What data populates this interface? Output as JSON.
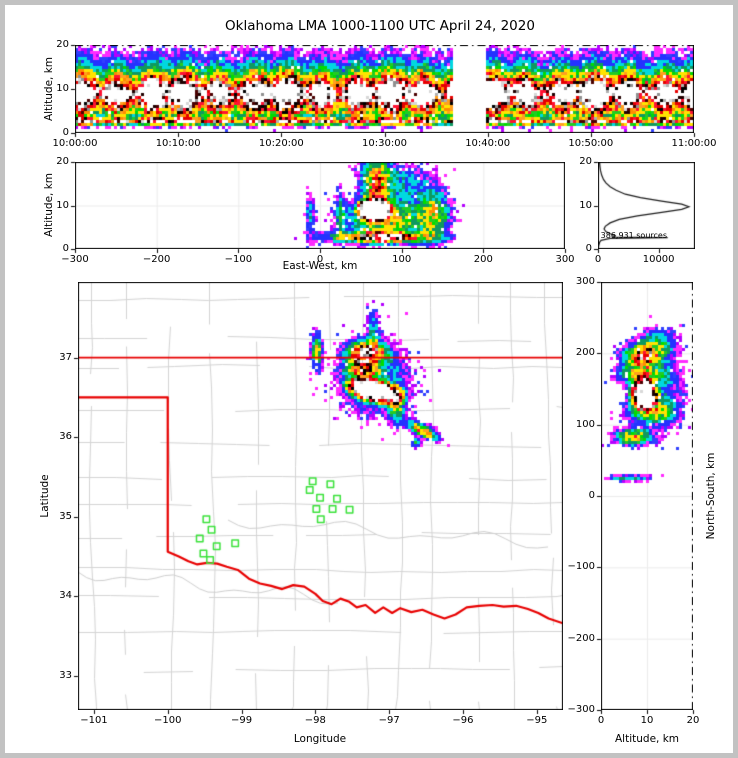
{
  "labels": {
    "title": "Oklahoma LMA 1000-1100 UTC April 24, 2020"
  },
  "colors": {
    "state_border": "#e80000",
    "county_line": "#d4d4d4",
    "river": "#cfcfcf",
    "station": "#3ce23c",
    "grid": "#ececec",
    "frame": "#000000",
    "background": "#ffffff",
    "outer_border": "#c2c2c2"
  },
  "color_scale": {
    "levels": [
      [
        0.955,
        [
          "#ffffff"
        ]
      ],
      [
        0.87,
        [
          "#d8d8d8",
          "#b0b0b0",
          "#909090"
        ]
      ],
      [
        0.77,
        [
          "#000000",
          "#200000",
          "#4a0000"
        ]
      ],
      [
        0.645,
        [
          "#e60000",
          "#ff1232"
        ]
      ],
      [
        0.535,
        [
          "#ff8c00",
          "#ffa020"
        ]
      ],
      [
        0.435,
        [
          "#ffe400"
        ]
      ],
      [
        0.35,
        [
          "#00dc00",
          "#22cc22"
        ]
      ],
      [
        0.275,
        [
          "#0f9960"
        ]
      ],
      [
        0.205,
        [
          "#00d8e0"
        ]
      ],
      [
        0.14,
        [
          "#2432ff"
        ]
      ],
      [
        0.085,
        [
          "#ff2bff",
          "#b400ff",
          "#3040ff",
          "#ff2bff"
        ]
      ]
    ],
    "sparse": {
      "threshold": 0.085,
      "colors": [
        "#ff2bff",
        "#ff2bff",
        "#b400ff",
        "#3040ff"
      ],
      "max_prob": 0.5
    }
  },
  "chart_data": [
    {
      "id": "time_height",
      "type": "heatmap",
      "ylabel": "Altitude, km",
      "x_range": [
        0,
        60
      ],
      "y_range": [
        0,
        20
      ],
      "x_tick_values": [
        0,
        10,
        20,
        30,
        40,
        50,
        60
      ],
      "x_tick_labels": [
        "10:00:00",
        "10:10:00",
        "10:20:00",
        "10:30:00",
        "10:40:00",
        "10:50:00",
        "11:00:00"
      ],
      "y_tick_values": [
        0,
        10,
        20
      ],
      "y_tick_labels": [
        "0",
        "10",
        "20"
      ],
      "gap_x": [
        36.7,
        39.8
      ],
      "components": [
        {
          "cx": 30,
          "cy": 9.2,
          "sx": 900,
          "sy": 1.7,
          "amp": 1.0
        },
        {
          "cx": 30,
          "cy": 7.2,
          "sx": 900,
          "sy": 2.4,
          "amp": 0.5
        },
        {
          "cx": 30,
          "cy": 2.6,
          "sx": 900,
          "sy": 0.55,
          "amp": 0.8
        },
        {
          "cx": 30,
          "cy": 12.2,
          "sx": 900,
          "sy": 1.9,
          "amp": 0.42
        },
        {
          "cx": 30,
          "cy": 15.5,
          "sx": 900,
          "sy": 2.8,
          "amp": 0.2
        },
        {
          "cx": 30,
          "cy": 5.0,
          "sx": 900,
          "sy": 1.6,
          "amp": 0.34
        }
      ]
    },
    {
      "id": "east_west",
      "type": "heatmap",
      "xlabel": "East-West, km",
      "ylabel": "Altitude, km",
      "x_range": [
        -300,
        300
      ],
      "y_range": [
        0,
        20
      ],
      "x_tick_values": [
        -300,
        -200,
        -100,
        0,
        100,
        200,
        300
      ],
      "x_tick_labels": [
        "−300",
        "−200",
        "−100",
        "0",
        "100",
        "200",
        "300"
      ],
      "y_tick_values": [
        0,
        10,
        20
      ],
      "y_tick_labels": [
        "0",
        "10",
        "20"
      ],
      "grid_x": [
        -200,
        -100,
        0,
        100,
        200
      ],
      "grid_y": [
        10
      ],
      "components": [
        {
          "cx": 66,
          "cy": 9.0,
          "sx": 17,
          "sy": 2.1,
          "amp": 1.12,
          "p": 2
        },
        {
          "cx": 69,
          "cy": 13.5,
          "sx": 11,
          "sy": 3.2,
          "amp": 0.5
        },
        {
          "cx": 80,
          "cy": 7.0,
          "sx": 33,
          "sy": 3.2,
          "amp": 0.5
        },
        {
          "cx": 75,
          "cy": 2.7,
          "sx": 40,
          "sy": 0.85,
          "amp": 0.78
        },
        {
          "cx": 140,
          "cy": 8.0,
          "sx": 13,
          "sy": 4.0,
          "amp": 0.42
        },
        {
          "cx": 70,
          "cy": 18.0,
          "sx": 13,
          "sy": 2.3,
          "amp": 0.33
        },
        {
          "cx": 25,
          "cy": 7.0,
          "sx": 3.5,
          "sy": 4.0,
          "amp": 0.26
        },
        {
          "cx": -12,
          "cy": 7.5,
          "sx": 4.5,
          "sy": 3.5,
          "amp": 0.22
        },
        {
          "cx": 105,
          "cy": 15.5,
          "sx": 22,
          "sy": 2.8,
          "amp": 0.22
        }
      ]
    },
    {
      "id": "source_histogram",
      "type": "line",
      "annotation": "386,931 sources",
      "x_range": [
        0,
        16000
      ],
      "y_range": [
        0,
        20
      ],
      "x_tick_values": [
        0,
        10000
      ],
      "x_tick_labels": [
        "0",
        "10000"
      ],
      "y_tick_values": [
        0,
        10,
        20
      ],
      "y_tick_labels": [
        "0",
        "10",
        "20"
      ],
      "points": [
        [
          0,
          50
        ],
        [
          0.8,
          120
        ],
        [
          1.5,
          250
        ],
        [
          2.0,
          500
        ],
        [
          2.45,
          2000
        ],
        [
          2.6,
          11500
        ],
        [
          2.75,
          2500
        ],
        [
          3.1,
          2800
        ],
        [
          3.5,
          2000
        ],
        [
          4.0,
          1300
        ],
        [
          4.6,
          1000
        ],
        [
          5.2,
          1200
        ],
        [
          6.0,
          2000
        ],
        [
          6.8,
          3500
        ],
        [
          7.6,
          6500
        ],
        [
          8.4,
          10500
        ],
        [
          9.1,
          13800
        ],
        [
          9.7,
          15000
        ],
        [
          10.3,
          13800
        ],
        [
          11.0,
          10500
        ],
        [
          11.8,
          7000
        ],
        [
          12.6,
          4500
        ],
        [
          13.5,
          3000
        ],
        [
          14.3,
          2000
        ],
        [
          15.2,
          1300
        ],
        [
          16.0,
          900
        ],
        [
          17.0,
          600
        ],
        [
          18.0,
          420
        ],
        [
          19.0,
          320
        ],
        [
          20.0,
          260
        ]
      ]
    },
    {
      "id": "plan_view",
      "type": "heatmap",
      "xlabel": "Longitude",
      "ylabel": "Latitude",
      "x_range": [
        -101.216,
        -94.645
      ],
      "y_range": [
        32.57,
        37.95
      ],
      "x_tick_values": [
        -101,
        -100,
        -99,
        -98,
        -97,
        -96,
        -95
      ],
      "x_tick_labels": [
        "−101",
        "−100",
        "−99",
        "−98",
        "−97",
        "−96",
        "−95"
      ],
      "y_tick_values": [
        33,
        34,
        35,
        36,
        37
      ],
      "y_tick_labels": [
        "33",
        "34",
        "35",
        "36",
        "37"
      ],
      "components": [
        {
          "cx": -97.2,
          "cy": 36.58,
          "sx": 0.3,
          "sy": 0.11,
          "rot": -10,
          "amp": 1.12,
          "p": 2
        },
        {
          "cx": -97.3,
          "cy": 37.07,
          "sx": 0.17,
          "sy": 0.09,
          "amp": 0.8
        },
        {
          "cx": -97.38,
          "cy": 36.85,
          "sx": 0.13,
          "sy": 0.09,
          "amp": 0.55
        },
        {
          "cx": -97.2,
          "cy": 36.72,
          "sx": 0.33,
          "sy": 0.3,
          "amp": 0.3
        },
        {
          "cx": -97.98,
          "cy": 37.08,
          "sx": 0.05,
          "sy": 0.14,
          "amp": 0.5
        },
        {
          "cx": -96.9,
          "cy": 36.4,
          "sx": 0.07,
          "sy": 0.13,
          "amp": 0.45
        },
        {
          "cx": -96.55,
          "cy": 36.08,
          "sx": 0.15,
          "sy": 0.05,
          "rot": -25,
          "amp": 0.6
        },
        {
          "cx": -97.22,
          "cy": 37.35,
          "sx": 0.05,
          "sy": 0.2,
          "amp": 0.25
        },
        {
          "cx": -96.63,
          "cy": 35.93,
          "sx": 0.04,
          "sy": 0.04,
          "amp": 0.4
        }
      ],
      "north_border": [
        [
          -101.216,
          37.0
        ],
        [
          -94.645,
          37.0
        ]
      ],
      "west_south_border": [
        [
          -101.216,
          36.5
        ],
        [
          -100.0,
          36.5
        ],
        [
          -100.0,
          34.56
        ],
        [
          -99.85,
          34.5
        ],
        [
          -99.72,
          34.44
        ],
        [
          -99.6,
          34.4
        ],
        [
          -99.47,
          34.42
        ],
        [
          -99.33,
          34.41
        ],
        [
          -99.2,
          34.37
        ],
        [
          -99.05,
          34.33
        ],
        [
          -98.9,
          34.22
        ],
        [
          -98.75,
          34.16
        ],
        [
          -98.6,
          34.13
        ],
        [
          -98.45,
          34.09
        ],
        [
          -98.3,
          34.14
        ],
        [
          -98.15,
          34.12
        ],
        [
          -98.0,
          34.03
        ],
        [
          -97.9,
          33.94
        ],
        [
          -97.78,
          33.9
        ],
        [
          -97.66,
          33.97
        ],
        [
          -97.54,
          33.93
        ],
        [
          -97.44,
          33.86
        ],
        [
          -97.32,
          33.89
        ],
        [
          -97.19,
          33.79
        ],
        [
          -97.08,
          33.86
        ],
        [
          -96.96,
          33.79
        ],
        [
          -96.85,
          33.85
        ],
        [
          -96.7,
          33.8
        ],
        [
          -96.55,
          33.83
        ],
        [
          -96.4,
          33.77
        ],
        [
          -96.25,
          33.72
        ],
        [
          -96.1,
          33.77
        ],
        [
          -95.95,
          33.86
        ],
        [
          -95.78,
          33.88
        ],
        [
          -95.6,
          33.89
        ],
        [
          -95.45,
          33.87
        ],
        [
          -95.28,
          33.88
        ],
        [
          -95.12,
          33.84
        ],
        [
          -94.98,
          33.79
        ],
        [
          -94.84,
          33.72
        ],
        [
          -94.645,
          33.66
        ]
      ],
      "stations": [
        [
          -99.48,
          34.97
        ],
        [
          -99.41,
          34.84
        ],
        [
          -99.57,
          34.73
        ],
        [
          -99.34,
          34.63
        ],
        [
          -99.52,
          34.54
        ],
        [
          -99.43,
          34.46
        ],
        [
          -99.09,
          34.67
        ],
        [
          -98.04,
          35.45
        ],
        [
          -97.8,
          35.41
        ],
        [
          -98.08,
          35.34
        ],
        [
          -97.94,
          35.24
        ],
        [
          -97.71,
          35.23
        ],
        [
          -97.99,
          35.1
        ],
        [
          -97.77,
          35.1
        ],
        [
          -97.54,
          35.09
        ],
        [
          -97.93,
          34.97
        ]
      ]
    },
    {
      "id": "north_south",
      "type": "heatmap",
      "xlabel": "Altitude, km",
      "ylabel": "North-South, km",
      "x_range": [
        0,
        20
      ],
      "y_range": [
        -300,
        300
      ],
      "x_tick_values": [
        0,
        10,
        20
      ],
      "x_tick_labels": [
        "0",
        "10",
        "20"
      ],
      "y_tick_values": [
        300,
        200,
        100,
        0,
        -100,
        -200,
        -300
      ],
      "y_tick_labels": [
        "300",
        "200",
        "100",
        "0",
        "−100",
        "−200",
        "−300"
      ],
      "grid_x": [
        10
      ],
      "grid_y": [
        200,
        100,
        0,
        -100,
        -200
      ],
      "components": [
        {
          "cx": 9.3,
          "cy": 143,
          "sx": 2.4,
          "sy": 18,
          "amp": 1.12,
          "p": 2
        },
        {
          "cx": 9.0,
          "cy": 196,
          "sx": 2.6,
          "sy": 10,
          "amp": 0.72
        },
        {
          "cx": 8.5,
          "cy": 170,
          "sx": 3.2,
          "sy": 10,
          "amp": 0.5
        },
        {
          "cx": 10.5,
          "cy": 120,
          "sx": 3.5,
          "sy": 12,
          "amp": 0.45
        },
        {
          "cx": 7.0,
          "cy": 83,
          "sx": 2.6,
          "sy": 8,
          "amp": 0.55
        },
        {
          "cx": 12.0,
          "cy": 215,
          "sx": 3.0,
          "sy": 12,
          "amp": 0.3
        },
        {
          "cx": 6.0,
          "cy": 25,
          "sx": 3.5,
          "sy": 3,
          "amp": 0.3
        },
        {
          "cx": 14.0,
          "cy": 150,
          "sx": 3.0,
          "sy": 40,
          "amp": 0.18
        }
      ]
    }
  ]
}
